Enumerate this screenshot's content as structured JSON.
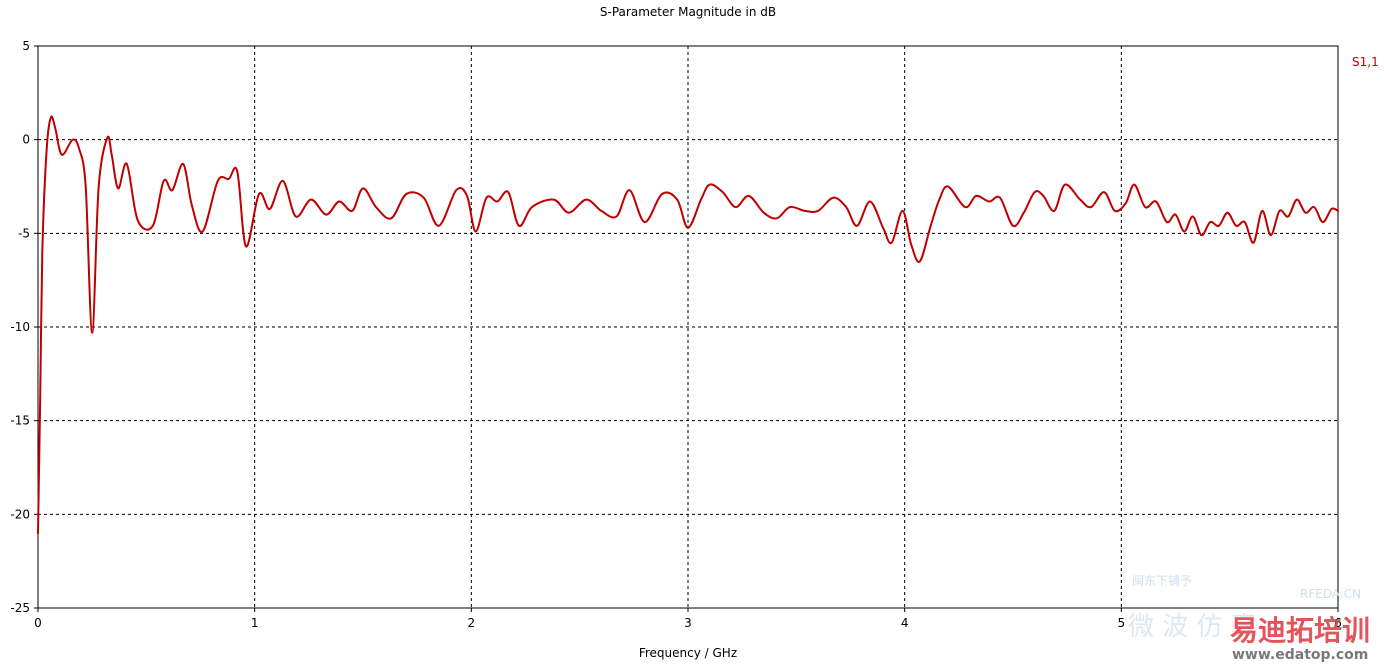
{
  "chart_data": {
    "type": "line",
    "title": "S-Parameter Magnitude in dB",
    "xlabel": "Frequency / GHz",
    "ylabel": "",
    "xlim": [
      0,
      6
    ],
    "ylim": [
      -25,
      5
    ],
    "x_ticks": [
      "0",
      "1",
      "2",
      "3",
      "4",
      "5",
      "6"
    ],
    "y_ticks": [
      "5",
      "0",
      "-5",
      "-10",
      "-15",
      "-20",
      "-25"
    ],
    "grid": true,
    "legend_position": "top-right",
    "series": [
      {
        "name": "S1,1",
        "color": "#c00000",
        "points": [
          [
            0.0,
            -21.0
          ],
          [
            0.01,
            -13.8
          ],
          [
            0.02,
            -6.0
          ],
          [
            0.04,
            -0.5
          ],
          [
            0.06,
            1.2
          ],
          [
            0.08,
            0.6
          ],
          [
            0.11,
            -0.8
          ],
          [
            0.16,
            0.0
          ],
          [
            0.19,
            -0.5
          ],
          [
            0.22,
            -2.5
          ],
          [
            0.25,
            -10.3
          ],
          [
            0.28,
            -2.5
          ],
          [
            0.32,
            0.1
          ],
          [
            0.34,
            -0.8
          ],
          [
            0.37,
            -2.6
          ],
          [
            0.41,
            -1.3
          ],
          [
            0.46,
            -4.3
          ],
          [
            0.53,
            -4.6
          ],
          [
            0.58,
            -2.2
          ],
          [
            0.62,
            -2.7
          ],
          [
            0.67,
            -1.3
          ],
          [
            0.71,
            -3.5
          ],
          [
            0.76,
            -4.9
          ],
          [
            0.83,
            -2.2
          ],
          [
            0.88,
            -2.1
          ],
          [
            0.92,
            -1.7
          ],
          [
            0.96,
            -5.7
          ],
          [
            1.02,
            -2.9
          ],
          [
            1.07,
            -3.7
          ],
          [
            1.13,
            -2.2
          ],
          [
            1.19,
            -4.1
          ],
          [
            1.26,
            -3.2
          ],
          [
            1.33,
            -4.0
          ],
          [
            1.39,
            -3.3
          ],
          [
            1.45,
            -3.8
          ],
          [
            1.5,
            -2.6
          ],
          [
            1.56,
            -3.6
          ],
          [
            1.63,
            -4.2
          ],
          [
            1.7,
            -2.9
          ],
          [
            1.78,
            -3.1
          ],
          [
            1.85,
            -4.6
          ],
          [
            1.93,
            -2.7
          ],
          [
            1.98,
            -3.0
          ],
          [
            2.02,
            -4.9
          ],
          [
            2.07,
            -3.1
          ],
          [
            2.12,
            -3.3
          ],
          [
            2.17,
            -2.8
          ],
          [
            2.22,
            -4.6
          ],
          [
            2.28,
            -3.6
          ],
          [
            2.38,
            -3.2
          ],
          [
            2.45,
            -3.9
          ],
          [
            2.53,
            -3.2
          ],
          [
            2.6,
            -3.8
          ],
          [
            2.67,
            -4.1
          ],
          [
            2.73,
            -2.7
          ],
          [
            2.8,
            -4.4
          ],
          [
            2.88,
            -2.9
          ],
          [
            2.95,
            -3.2
          ],
          [
            3.0,
            -4.7
          ],
          [
            3.06,
            -3.2
          ],
          [
            3.1,
            -2.4
          ],
          [
            3.16,
            -2.8
          ],
          [
            3.22,
            -3.6
          ],
          [
            3.28,
            -3.0
          ],
          [
            3.35,
            -3.9
          ],
          [
            3.41,
            -4.2
          ],
          [
            3.47,
            -3.6
          ],
          [
            3.54,
            -3.8
          ],
          [
            3.6,
            -3.8
          ],
          [
            3.67,
            -3.1
          ],
          [
            3.73,
            -3.6
          ],
          [
            3.78,
            -4.6
          ],
          [
            3.84,
            -3.3
          ],
          [
            3.9,
            -4.7
          ],
          [
            3.94,
            -5.5
          ],
          [
            3.99,
            -3.8
          ],
          [
            4.03,
            -5.6
          ],
          [
            4.07,
            -6.5
          ],
          [
            4.12,
            -4.6
          ],
          [
            4.16,
            -3.2
          ],
          [
            4.2,
            -2.5
          ],
          [
            4.28,
            -3.6
          ],
          [
            4.33,
            -3.0
          ],
          [
            4.39,
            -3.3
          ],
          [
            4.44,
            -3.1
          ],
          [
            4.5,
            -4.6
          ],
          [
            4.55,
            -3.9
          ],
          [
            4.6,
            -2.8
          ],
          [
            4.64,
            -3.0
          ],
          [
            4.69,
            -3.8
          ],
          [
            4.74,
            -2.4
          ],
          [
            4.81,
            -3.2
          ],
          [
            4.86,
            -3.6
          ],
          [
            4.92,
            -2.8
          ],
          [
            4.97,
            -3.8
          ],
          [
            5.02,
            -3.4
          ],
          [
            5.06,
            -2.4
          ],
          [
            5.11,
            -3.6
          ],
          [
            5.16,
            -3.3
          ],
          [
            5.21,
            -4.4
          ],
          [
            5.25,
            -4.0
          ],
          [
            5.29,
            -4.9
          ],
          [
            5.33,
            -4.1
          ],
          [
            5.37,
            -5.1
          ],
          [
            5.41,
            -4.4
          ],
          [
            5.45,
            -4.6
          ],
          [
            5.49,
            -3.9
          ],
          [
            5.53,
            -4.6
          ],
          [
            5.57,
            -4.4
          ],
          [
            5.61,
            -5.5
          ],
          [
            5.65,
            -3.8
          ],
          [
            5.69,
            -5.1
          ],
          [
            5.73,
            -3.8
          ],
          [
            5.77,
            -4.1
          ],
          [
            5.81,
            -3.2
          ],
          [
            5.85,
            -3.9
          ],
          [
            5.89,
            -3.6
          ],
          [
            5.93,
            -4.4
          ],
          [
            5.97,
            -3.7
          ],
          [
            6.0,
            -3.8
          ]
        ]
      }
    ]
  },
  "watermark": {
    "line1": "闽东下铺予",
    "site_code": "RFEDA.CN",
    "chinese_bg": "微 波 仿 真",
    "brand": "易迪拓培训",
    "url": "www.edatop.com"
  }
}
